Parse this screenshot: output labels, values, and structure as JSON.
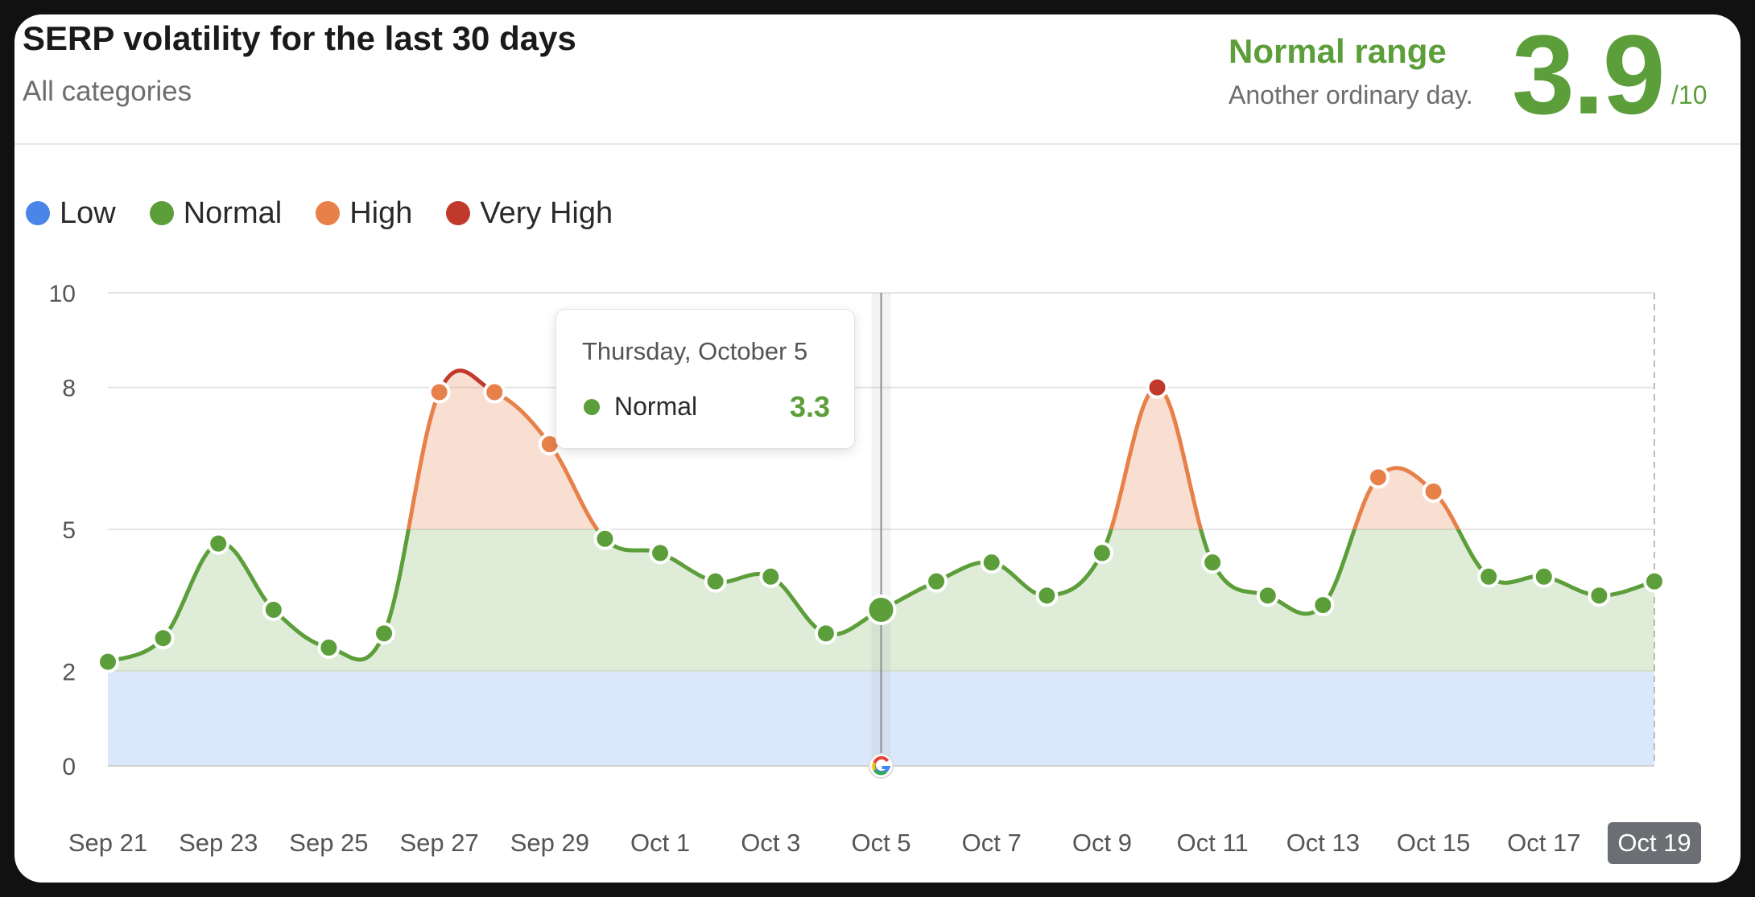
{
  "header": {
    "title": "SERP volatility for the last 30 days",
    "subtitle": "All categories",
    "range_label": "Normal range",
    "range_desc": "Another ordinary day.",
    "score": "3.9",
    "score_den": "/10"
  },
  "legend": [
    {
      "label": "Low",
      "color": "#4a86e8"
    },
    {
      "label": "Normal",
      "color": "#5c9e3a"
    },
    {
      "label": "High",
      "color": "#e8804a"
    },
    {
      "label": "Very High",
      "color": "#c0392b"
    }
  ],
  "tooltip": {
    "date": "Thursday, October 5",
    "label": "Normal",
    "value": "3.3"
  },
  "google_icon": "google-update-icon",
  "chart_data": {
    "type": "area",
    "title": "SERP volatility for the last 30 days",
    "ylim": [
      0,
      10
    ],
    "y_ticks": [
      0,
      2,
      5,
      8,
      10
    ],
    "bands": [
      {
        "name": "Low",
        "from": 0,
        "to": 2,
        "color": "#4a86e8"
      },
      {
        "name": "Normal",
        "from": 2,
        "to": 5,
        "color": "#5c9e3a"
      },
      {
        "name": "High",
        "from": 5,
        "to": 8,
        "color": "#e8804a"
      },
      {
        "name": "Very High",
        "from": 8,
        "to": 10,
        "color": "#c0392b"
      }
    ],
    "x_tick_labels": [
      "Sep 21",
      "Sep 23",
      "Sep 25",
      "Sep 27",
      "Sep 29",
      "Oct 1",
      "Oct 3",
      "Oct 5",
      "Oct 7",
      "Oct 9",
      "Oct 11",
      "Oct 13",
      "Oct 15",
      "Oct 17",
      "Oct 19"
    ],
    "x": [
      "Sep 21",
      "Sep 22",
      "Sep 23",
      "Sep 24",
      "Sep 25",
      "Sep 26",
      "Sep 27",
      "Sep 28",
      "Sep 29",
      "Sep 30",
      "Oct 1",
      "Oct 2",
      "Oct 3",
      "Oct 4",
      "Oct 5",
      "Oct 6",
      "Oct 7",
      "Oct 8",
      "Oct 9",
      "Oct 10",
      "Oct 11",
      "Oct 12",
      "Oct 13",
      "Oct 14",
      "Oct 15",
      "Oct 16",
      "Oct 17",
      "Oct 18",
      "Oct 19"
    ],
    "values": [
      2.2,
      2.7,
      4.7,
      3.3,
      2.5,
      2.8,
      7.9,
      7.9,
      6.8,
      4.8,
      4.5,
      3.9,
      4.0,
      2.8,
      3.3,
      3.9,
      4.3,
      3.6,
      4.5,
      8.0,
      4.3,
      3.6,
      3.4,
      6.1,
      5.8,
      4.0,
      4.0,
      3.6,
      3.9
    ],
    "highlight": "Oct 5",
    "highlight_tick": "Oct 19",
    "google_update_at": "Oct 5"
  }
}
